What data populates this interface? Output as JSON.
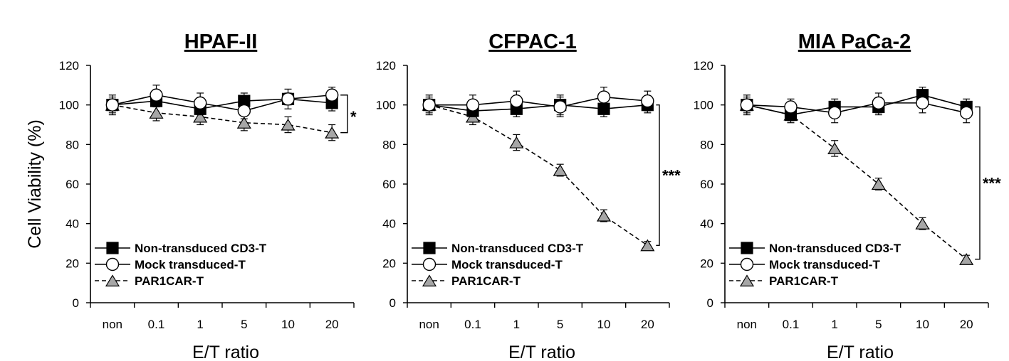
{
  "figure": {
    "ylabel": "Cell Viability (%)",
    "xlabel": "E/T ratio"
  },
  "chart_data": [
    {
      "type": "line",
      "title": "HPAF-II",
      "categories": [
        "non",
        "0.1",
        "1",
        "5",
        "10",
        "20"
      ],
      "ylabel": "Cell Viability (%)",
      "xlabel": "E/T ratio",
      "ylim": [
        0,
        120
      ],
      "yticks": [
        0,
        20,
        40,
        60,
        80,
        100,
        120
      ],
      "show_ylabel": true,
      "legend": "bottom-left",
      "significance": "*",
      "significance_between": [
        "Mock transduced-T",
        "PAR1CAR-T"
      ],
      "series": [
        {
          "name": "Non-transduced CD3-T",
          "marker": "square",
          "line": "solid",
          "color": "#000000",
          "values": [
            100,
            102,
            98,
            102,
            103,
            101
          ],
          "errors": [
            3,
            3,
            3,
            4,
            3,
            4
          ]
        },
        {
          "name": "Mock transduced-T",
          "marker": "circle",
          "line": "solid",
          "color": "#ffffff",
          "values": [
            100,
            105,
            101,
            97,
            103,
            105
          ],
          "errors": [
            5,
            5,
            5,
            4,
            5,
            4
          ]
        },
        {
          "name": "PAR1CAR-T",
          "marker": "triangle",
          "line": "dashed",
          "color": "#a6a6a6",
          "values": [
            100,
            96,
            94,
            91,
            90,
            86
          ],
          "errors": [
            4,
            4,
            4,
            4,
            4,
            4
          ]
        }
      ]
    },
    {
      "type": "line",
      "title": "CFPAC-1",
      "categories": [
        "non",
        "0.1",
        "1",
        "5",
        "10",
        "20"
      ],
      "xlabel": "E/T ratio",
      "ylim": [
        0,
        120
      ],
      "yticks": [
        0,
        20,
        40,
        60,
        80,
        100,
        120
      ],
      "show_ylabel": false,
      "legend": "bottom-left",
      "significance": "***",
      "significance_between": [
        "Non-transduced CD3-T",
        "PAR1CAR-T"
      ],
      "series": [
        {
          "name": "Non-transduced CD3-T",
          "marker": "square",
          "line": "solid",
          "color": "#000000",
          "values": [
            100,
            97,
            98,
            100,
            98,
            100
          ],
          "errors": [
            3,
            3,
            4,
            5,
            4,
            4
          ]
        },
        {
          "name": "Mock transduced-T",
          "marker": "circle",
          "line": "solid",
          "color": "#ffffff",
          "values": [
            100,
            100,
            102,
            99,
            104,
            102
          ],
          "errors": [
            5,
            5,
            5,
            5,
            5,
            5
          ]
        },
        {
          "name": "PAR1CAR-T",
          "marker": "triangle",
          "line": "dashed",
          "color": "#a6a6a6",
          "values": [
            100,
            94,
            81,
            67,
            44,
            29
          ],
          "errors": [
            4,
            4,
            4,
            3,
            3,
            2
          ]
        }
      ]
    },
    {
      "type": "line",
      "title": "MIA PaCa-2",
      "categories": [
        "non",
        "0.1",
        "1",
        "5",
        "10",
        "20"
      ],
      "xlabel": "E/T ratio",
      "ylim": [
        0,
        120
      ],
      "yticks": [
        0,
        20,
        40,
        60,
        80,
        100,
        120
      ],
      "show_ylabel": false,
      "legend": "bottom-left",
      "significance": "***",
      "significance_between": [
        "Non-transduced CD3-T",
        "PAR1CAR-T"
      ],
      "series": [
        {
          "name": "Non-transduced CD3-T",
          "marker": "square",
          "line": "solid",
          "color": "#000000",
          "values": [
            100,
            95,
            99,
            99,
            105,
            99
          ],
          "errors": [
            3,
            3,
            4,
            4,
            4,
            4
          ]
        },
        {
          "name": "Mock transduced-T",
          "marker": "circle",
          "line": "solid",
          "color": "#ffffff",
          "values": [
            100,
            99,
            96,
            101,
            101,
            96
          ],
          "errors": [
            5,
            4,
            5,
            5,
            5,
            5
          ]
        },
        {
          "name": "PAR1CAR-T",
          "marker": "triangle",
          "line": "dashed",
          "color": "#a6a6a6",
          "values": [
            100,
            95,
            78,
            60,
            40,
            22
          ],
          "errors": [
            4,
            4,
            4,
            3,
            3,
            2
          ]
        }
      ]
    }
  ]
}
